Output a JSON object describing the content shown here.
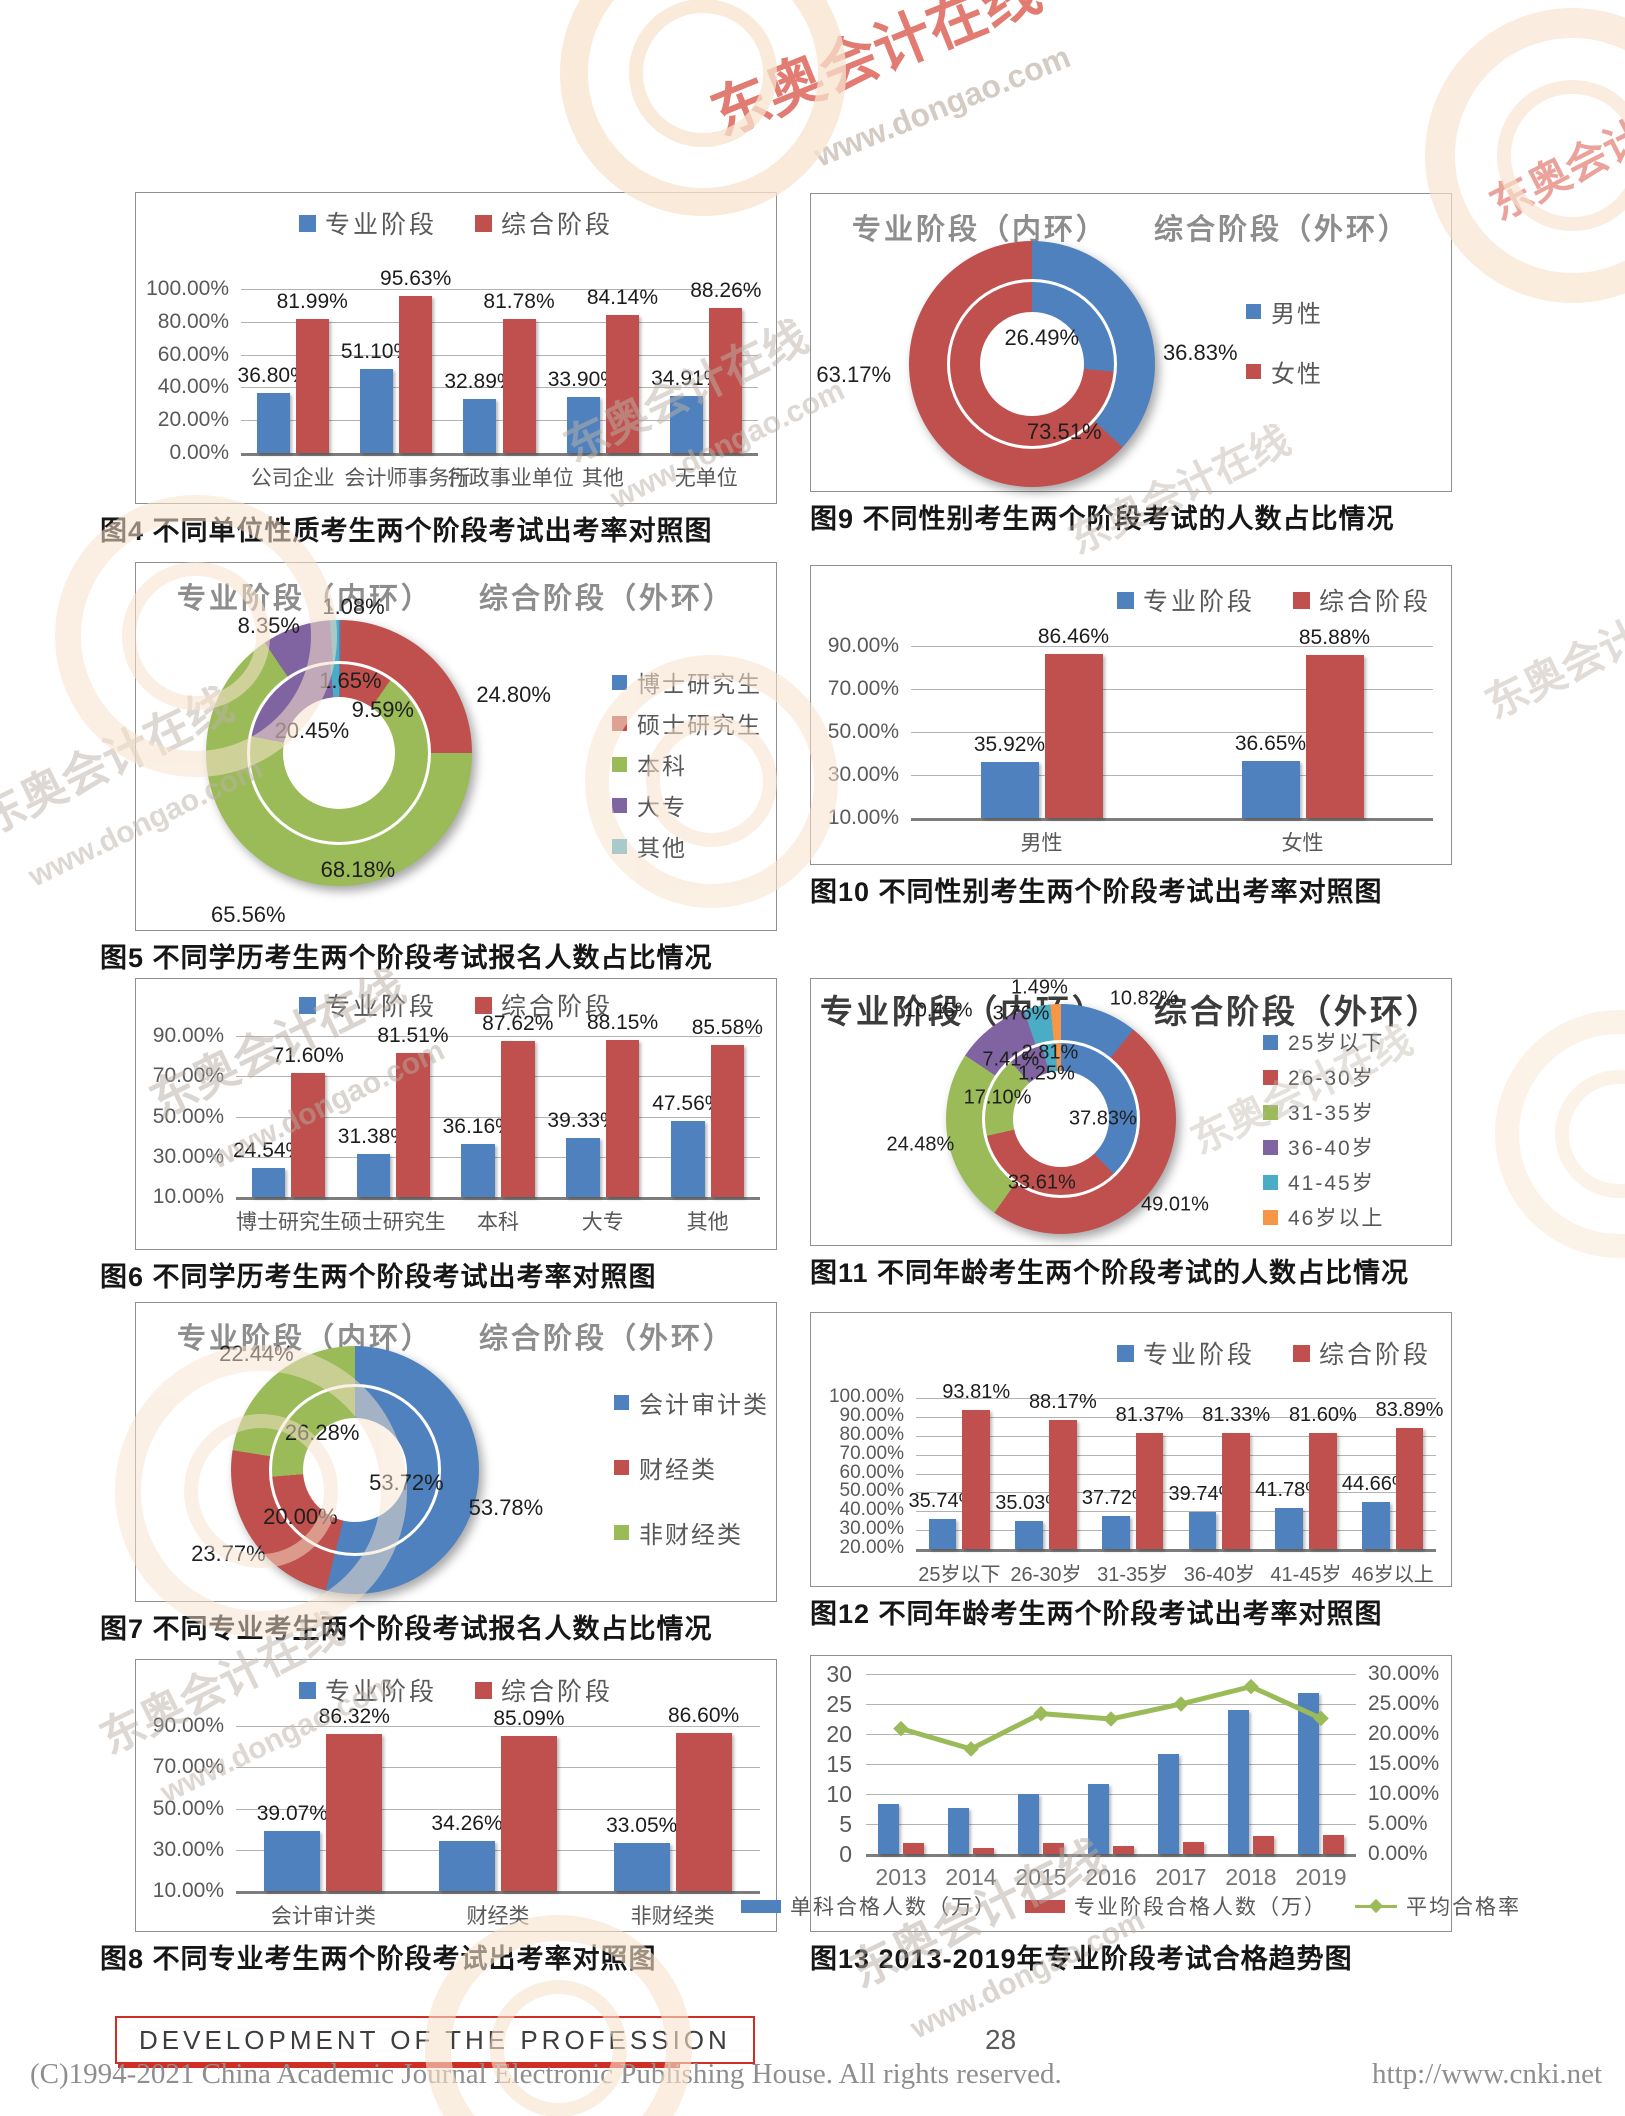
{
  "watermark": {
    "brand": "东奥会计在线",
    "url": "www.dongao.com"
  },
  "footer": {
    "banner": "DEVELOPMENT OF THE PROFESSION",
    "page_number": "28",
    "copyright": "(C)1994-2021 China Academic Journal Electronic Publishing House. All rights reserved.",
    "url": "http://www.cnki.net"
  },
  "colors": {
    "blue": "#4E81BD",
    "red": "#C0504D",
    "green": "#9BBB59",
    "purple": "#8064A2",
    "teal": "#4BACC6",
    "orange": "#F79646"
  },
  "chart_data": [
    {
      "id": "fig4",
      "type": "bar",
      "caption": "图4  不同单位性质考生两个阶段考试出考率对照图",
      "categories": [
        "公司企业",
        "会计师事务所",
        "行政事业单位",
        "其他",
        "无单位"
      ],
      "series": [
        {
          "name": "专业阶段",
          "color": "#4E81BD",
          "values": [
            36.8,
            51.1,
            32.89,
            33.9,
            34.91
          ]
        },
        {
          "name": "综合阶段",
          "color": "#C0504D",
          "values": [
            81.99,
            95.63,
            81.78,
            84.14,
            88.26
          ]
        }
      ],
      "ylim": [
        0,
        100
      ],
      "ystep": 20,
      "grid": true,
      "legend_position": "top"
    },
    {
      "id": "fig5",
      "type": "donut",
      "caption": "图5  不同学历考生两个阶段考试报名人数占比情况",
      "title_inner": "专业阶段（内环）",
      "title_outer": "综合阶段（外环）",
      "categories": [
        "博士研究生",
        "硕士研究生",
        "本科",
        "大专",
        "其他"
      ],
      "colors": [
        "#4E81BD",
        "#C0504D",
        "#9BBB59",
        "#8064A2",
        "#4BACC6"
      ],
      "inner_values": [
        null,
        9.59,
        68.18,
        20.45,
        1.65
      ],
      "outer_values": [
        null,
        24.8,
        65.56,
        8.35,
        1.08
      ]
    },
    {
      "id": "fig6",
      "type": "bar",
      "caption": "图6  不同学历考生两个阶段考试出考率对照图",
      "categories": [
        "博士研究生",
        "硕士研究生",
        "本科",
        "大专",
        "其他"
      ],
      "series": [
        {
          "name": "专业阶段",
          "color": "#4E81BD",
          "values": [
            24.54,
            31.38,
            36.16,
            39.33,
            47.56
          ]
        },
        {
          "name": "综合阶段",
          "color": "#C0504D",
          "values": [
            71.6,
            81.51,
            87.62,
            88.15,
            85.58
          ]
        }
      ],
      "ylim": [
        10,
        90
      ],
      "ystep": 20,
      "grid": true,
      "legend_position": "top"
    },
    {
      "id": "fig7",
      "type": "donut",
      "caption": "图7  不同专业考生两个阶段考试报名人数占比情况",
      "title_inner": "专业阶段（内环）",
      "title_outer": "综合阶段（外环）",
      "categories": [
        "会计审计类",
        "财经类",
        "非财经类"
      ],
      "colors": [
        "#4E81BD",
        "#C0504D",
        "#9BBB59"
      ],
      "inner_values": [
        53.72,
        20.0,
        26.28
      ],
      "outer_values": [
        53.78,
        23.77,
        22.44
      ]
    },
    {
      "id": "fig8",
      "type": "bar",
      "caption": "图8  不同专业考生两个阶段考试出考率对照图",
      "categories": [
        "会计审计类",
        "财经类",
        "非财经类"
      ],
      "series": [
        {
          "name": "专业阶段",
          "color": "#4E81BD",
          "values": [
            39.07,
            34.26,
            33.05
          ]
        },
        {
          "name": "综合阶段",
          "color": "#C0504D",
          "values": [
            86.32,
            85.09,
            86.6
          ]
        }
      ],
      "ylim": [
        10,
        90
      ],
      "ystep": 20,
      "grid": true,
      "legend_position": "top"
    },
    {
      "id": "fig9",
      "type": "donut",
      "caption": "图9  不同性别考生两个阶段考试的人数占比情况",
      "title_inner": "专业阶段（内环）",
      "title_outer": "综合阶段（外环）",
      "categories": [
        "男性",
        "女性"
      ],
      "colors": [
        "#4E81BD",
        "#C0504D"
      ],
      "inner_values": [
        26.49,
        73.51
      ],
      "outer_values": [
        36.83,
        63.17
      ]
    },
    {
      "id": "fig10",
      "type": "bar",
      "caption": "图10  不同性别考生两个阶段考试出考率对照图",
      "categories": [
        "男性",
        "女性"
      ],
      "series": [
        {
          "name": "专业阶段",
          "color": "#4E81BD",
          "values": [
            35.92,
            36.65
          ]
        },
        {
          "name": "综合阶段",
          "color": "#C0504D",
          "values": [
            86.46,
            85.88
          ]
        }
      ],
      "ylim": [
        10,
        90
      ],
      "ystep": 20,
      "grid": true,
      "legend_position": "top-right"
    },
    {
      "id": "fig11",
      "type": "donut",
      "caption": "图11  不同年龄考生两个阶段考试的人数占比情况",
      "title_inner": "专业阶段（内环）",
      "title_outer": "综合阶段（外环）",
      "categories": [
        "25岁以下",
        "26-30岁",
        "31-35岁",
        "36-40岁",
        "41-45岁",
        "46岁以上"
      ],
      "colors": [
        "#4E81BD",
        "#C0504D",
        "#9BBB59",
        "#8064A2",
        "#4BACC6",
        "#F79646"
      ],
      "inner_values": [
        37.83,
        33.61,
        17.1,
        7.41,
        2.81,
        1.25
      ],
      "outer_values": [
        10.82,
        49.01,
        24.48,
        10.45,
        3.76,
        1.49
      ]
    },
    {
      "id": "fig12",
      "type": "bar",
      "caption": "图12  不同年龄考生两个阶段考试出考率对照图",
      "categories": [
        "25岁以下",
        "26-30岁",
        "31-35岁",
        "36-40岁",
        "41-45岁",
        "46岁以上"
      ],
      "series": [
        {
          "name": "专业阶段",
          "color": "#4E81BD",
          "values": [
            35.74,
            35.03,
            37.72,
            39.74,
            41.78,
            44.66
          ]
        },
        {
          "name": "综合阶段",
          "color": "#C0504D",
          "values": [
            93.81,
            88.17,
            81.37,
            81.33,
            81.6,
            83.89
          ]
        }
      ],
      "ylim": [
        20,
        100
      ],
      "ystep": 10,
      "grid": true,
      "legend_position": "top-right"
    },
    {
      "id": "fig13",
      "type": "combo",
      "caption": "图13  2013-2019年专业阶段考试合格趋势图",
      "categories": [
        "2013",
        "2014",
        "2015",
        "2016",
        "2017",
        "2018",
        "2019"
      ],
      "bar_series": [
        {
          "name": "单科合格人数（万）",
          "color": "#4E81BD",
          "values": [
            8.4,
            7.6,
            10.0,
            11.7,
            16.6,
            24.0,
            26.8
          ]
        },
        {
          "name": "专业阶段合格人数（万）",
          "color": "#C0504D",
          "values": [
            1.8,
            1.0,
            1.8,
            1.3,
            2.0,
            3.0,
            3.2
          ]
        }
      ],
      "line_series": {
        "name": "平均合格率",
        "color": "#9BBB59",
        "values_percent": [
          20.9,
          17.5,
          23.4,
          22.5,
          25.0,
          27.9,
          22.6
        ]
      },
      "ylim_left": [
        0,
        30
      ],
      "ystep_left": 5,
      "ylim_right_percent": [
        0,
        30
      ],
      "ystep_right": 5,
      "values_estimated_from_pixels": true
    }
  ]
}
